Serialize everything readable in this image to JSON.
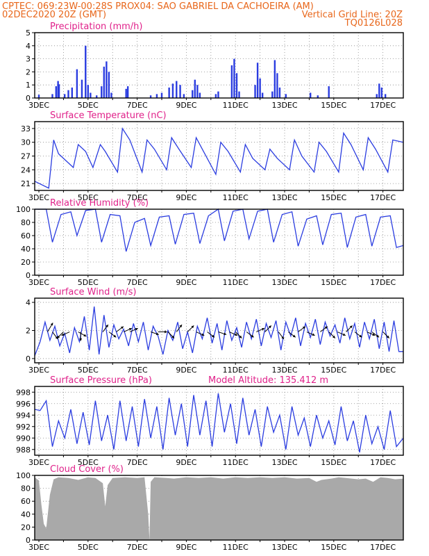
{
  "header": {
    "line1_left": "CPTEC:  069:23W-00:28S  PROX04: SAO GABRIEL DA CACHOEIRA (AM)",
    "line2_left": "02DEC2020 20Z (GMT)",
    "line2_right": "Vertical Grid Line: 20Z",
    "line3_right": "TQ0126L028"
  },
  "colors": {
    "header": "#e8661a",
    "title": "#e0218a",
    "series": "#2a3ce0",
    "cloud": "#a9a9a9",
    "grid": "#888888"
  },
  "x_axis": {
    "labels": [
      "3DEC",
      "5DEC",
      "7DEC",
      "9DEC",
      "11DEC",
      "13DEC",
      "15DEC",
      "17DEC"
    ],
    "range_days": [
      2.83,
      17.83
    ]
  },
  "chart_data": [
    {
      "type": "bar",
      "title": "Precipitation (mm/h)",
      "ylim": [
        0,
        5
      ],
      "yticks": [
        "0",
        "1",
        "2",
        "3",
        "4",
        "5"
      ],
      "bursts": [
        [
          3.0,
          0.25
        ],
        [
          3.55,
          0.3
        ],
        [
          3.7,
          0.9
        ],
        [
          3.78,
          1.3
        ],
        [
          3.82,
          1.05
        ],
        [
          4.05,
          0.3
        ],
        [
          4.2,
          0.6
        ],
        [
          4.35,
          0.8
        ],
        [
          4.55,
          2.2
        ],
        [
          4.75,
          1.4
        ],
        [
          4.9,
          4.0
        ],
        [
          5.0,
          1.0
        ],
        [
          5.1,
          0.4
        ],
        [
          5.35,
          0.2
        ],
        [
          5.55,
          0.9
        ],
        [
          5.65,
          2.4
        ],
        [
          5.75,
          2.8
        ],
        [
          5.85,
          2.0
        ],
        [
          5.95,
          0.4
        ],
        [
          6.55,
          0.7
        ],
        [
          6.62,
          0.9
        ],
        [
          7.55,
          0.2
        ],
        [
          7.8,
          0.3
        ],
        [
          8.0,
          0.4
        ],
        [
          8.3,
          0.8
        ],
        [
          8.45,
          1.1
        ],
        [
          8.6,
          1.3
        ],
        [
          8.75,
          1.0
        ],
        [
          8.9,
          0.3
        ],
        [
          9.25,
          0.6
        ],
        [
          9.35,
          1.4
        ],
        [
          9.45,
          1.0
        ],
        [
          9.55,
          0.4
        ],
        [
          10.2,
          0.3
        ],
        [
          10.3,
          0.5
        ],
        [
          10.85,
          2.5
        ],
        [
          10.95,
          3.0
        ],
        [
          11.05,
          1.9
        ],
        [
          11.15,
          0.5
        ],
        [
          11.8,
          1.0
        ],
        [
          11.9,
          2.7
        ],
        [
          12.0,
          1.5
        ],
        [
          12.1,
          0.4
        ],
        [
          12.5,
          0.5
        ],
        [
          12.6,
          2.9
        ],
        [
          12.7,
          1.9
        ],
        [
          12.8,
          0.8
        ],
        [
          13.05,
          0.3
        ],
        [
          14.05,
          0.4
        ],
        [
          14.35,
          0.2
        ],
        [
          14.8,
          0.9
        ],
        [
          16.75,
          0.3
        ],
        [
          16.85,
          1.1
        ],
        [
          16.95,
          0.8
        ],
        [
          17.1,
          0.3
        ]
      ]
    },
    {
      "type": "line",
      "title": "Surface Temperature (nC)",
      "ylim": [
        19.5,
        34.5
      ],
      "yticks": [
        "21",
        "24",
        "27",
        "30",
        "33"
      ],
      "x_days": [
        2.83,
        3.4,
        3.6,
        3.8,
        4.4,
        4.6,
        4.9,
        5.2,
        5.5,
        5.7,
        6.2,
        6.4,
        6.7,
        7.2,
        7.4,
        7.7,
        8.2,
        8.4,
        8.7,
        9.2,
        9.4,
        9.7,
        10.2,
        10.4,
        10.7,
        11.2,
        11.4,
        11.7,
        12.2,
        12.4,
        12.7,
        13.2,
        13.4,
        13.7,
        14.2,
        14.4,
        14.7,
        15.2,
        15.4,
        15.7,
        16.2,
        16.4,
        16.7,
        17.2,
        17.4,
        17.83
      ],
      "values": [
        21.5,
        20.0,
        30.5,
        27.5,
        24.5,
        29.5,
        28.0,
        24.5,
        29.5,
        28.0,
        23.5,
        33.0,
        30.5,
        23.5,
        30.5,
        28.5,
        24.0,
        31.0,
        28.5,
        24.5,
        31.0,
        28.0,
        23.0,
        30.0,
        28.0,
        23.5,
        29.5,
        26.5,
        24.0,
        28.5,
        26.5,
        24.0,
        30.5,
        27.0,
        23.5,
        30.0,
        28.0,
        23.5,
        32.0,
        29.5,
        24.0,
        31.0,
        28.5,
        23.5,
        30.5,
        30.0
      ]
    },
    {
      "type": "line",
      "title": "Relative Humidity (%)",
      "ylim": [
        0,
        100
      ],
      "yticks": [
        "0",
        "20",
        "40",
        "60",
        "80",
        "100"
      ],
      "x_days": [
        2.83,
        3.3,
        3.55,
        3.9,
        4.3,
        4.55,
        4.9,
        5.3,
        5.55,
        5.9,
        6.3,
        6.55,
        6.9,
        7.3,
        7.55,
        7.9,
        8.3,
        8.55,
        8.9,
        9.3,
        9.55,
        9.9,
        10.3,
        10.55,
        10.9,
        11.3,
        11.55,
        11.9,
        12.3,
        12.55,
        12.9,
        13.3,
        13.55,
        13.9,
        14.3,
        14.55,
        14.9,
        15.3,
        15.55,
        15.9,
        16.3,
        16.55,
        16.9,
        17.3,
        17.55,
        17.83
      ],
      "values": [
        100,
        100,
        50,
        92,
        96,
        60,
        98,
        100,
        50,
        92,
        90,
        36,
        80,
        86,
        45,
        88,
        90,
        47,
        92,
        94,
        48,
        90,
        100,
        52,
        97,
        100,
        55,
        97,
        100,
        50,
        92,
        96,
        44,
        85,
        90,
        46,
        92,
        94,
        42,
        88,
        92,
        44,
        88,
        90,
        42,
        45
      ]
    },
    {
      "type": "line",
      "title": "Surface Wind (m/s)",
      "ylim": [
        -0.3,
        4.3
      ],
      "yticks": [
        "0",
        "2",
        "4"
      ],
      "x_days": [
        2.83,
        3.05,
        3.25,
        3.45,
        3.65,
        3.85,
        4.05,
        4.25,
        4.45,
        4.65,
        4.85,
        5.05,
        5.25,
        5.45,
        5.65,
        5.85,
        6.05,
        6.25,
        6.45,
        6.65,
        6.85,
        7.05,
        7.25,
        7.45,
        7.65,
        7.85,
        8.05,
        8.25,
        8.45,
        8.65,
        8.85,
        9.05,
        9.25,
        9.45,
        9.65,
        9.85,
        10.05,
        10.25,
        10.45,
        10.65,
        10.85,
        11.05,
        11.25,
        11.45,
        11.65,
        11.85,
        12.05,
        12.25,
        12.45,
        12.65,
        12.85,
        13.05,
        13.25,
        13.45,
        13.65,
        13.85,
        14.05,
        14.25,
        14.45,
        14.65,
        14.85,
        15.05,
        15.25,
        15.45,
        15.65,
        15.85,
        16.05,
        16.25,
        16.45,
        16.65,
        16.85,
        17.05,
        17.25,
        17.45,
        17.65,
        17.83
      ],
      "values": [
        0.2,
        1.2,
        2.6,
        1.3,
        2.3,
        0.9,
        1.8,
        0.4,
        2.2,
        1.2,
        3.0,
        0.6,
        3.7,
        0.3,
        3.1,
        0.8,
        2.4,
        1.4,
        2.1,
        0.9,
        2.5,
        1.2,
        2.6,
        0.6,
        2.3,
        1.6,
        0.3,
        2.0,
        1.3,
        2.6,
        0.7,
        1.9,
        0.4,
        2.3,
        1.4,
        2.9,
        1.1,
        2.5,
        0.6,
        2.7,
        1.3,
        2.2,
        0.8,
        2.6,
        1.4,
        2.8,
        0.9,
        2.5,
        1.5,
        2.7,
        0.6,
        2.6,
        1.6,
        2.9,
        0.9,
        2.5,
        1.5,
        2.8,
        1.0,
        2.6,
        1.6,
        2.4,
        1.1,
        2.9,
        1.4,
        2.5,
        0.8,
        2.6,
        1.4,
        2.8,
        0.7,
        2.6,
        0.5,
        2.7,
        0.5,
        0.5
      ],
      "arrows": [
        {
          "day": 3.35,
          "dx": 0.6,
          "dy": 1.0
        },
        {
          "day": 3.55,
          "dx": 0.6,
          "dy": -0.8
        },
        {
          "day": 4.0,
          "dx": -0.7,
          "dy": -0.7
        },
        {
          "day": 4.25,
          "dx": -0.9,
          "dy": -0.4
        },
        {
          "day": 4.6,
          "dx": 0.9,
          "dy": -0.5
        },
        {
          "day": 4.7,
          "dx": 0.0,
          "dy": -1.0
        },
        {
          "day": 5.6,
          "dx": 0.6,
          "dy": 0.8
        },
        {
          "day": 5.85,
          "dx": 0.8,
          "dy": -0.6
        },
        {
          "day": 6.15,
          "dx": 0.8,
          "dy": 0.6
        },
        {
          "day": 6.45,
          "dx": 0.9,
          "dy": 0.4
        },
        {
          "day": 6.7,
          "dx": 0.9,
          "dy": 0.4
        },
        {
          "day": 7.55,
          "dx": 0.9,
          "dy": -0.3
        },
        {
          "day": 7.85,
          "dx": 1.0,
          "dy": 0.0
        },
        {
          "day": 8.25,
          "dx": 0.7,
          "dy": -0.7
        },
        {
          "day": 8.6,
          "dx": 0.6,
          "dy": 0.8
        },
        {
          "day": 9.05,
          "dx": 0.7,
          "dy": 0.7
        },
        {
          "day": 9.4,
          "dx": 0.9,
          "dy": -0.4
        },
        {
          "day": 9.85,
          "dx": 0.8,
          "dy": -0.6
        },
        {
          "day": 10.3,
          "dx": 0.9,
          "dy": -0.3
        },
        {
          "day": 10.75,
          "dx": 0.9,
          "dy": -0.4
        },
        {
          "day": 11.0,
          "dx": 0.7,
          "dy": -0.7
        },
        {
          "day": 11.45,
          "dx": 0.8,
          "dy": -0.6
        },
        {
          "day": 11.85,
          "dx": 0.9,
          "dy": 0.4
        },
        {
          "day": 12.2,
          "dx": 0.7,
          "dy": 0.7
        },
        {
          "day": 12.75,
          "dx": 0.6,
          "dy": -0.8
        },
        {
          "day": 13.15,
          "dx": 0.8,
          "dy": -0.6
        },
        {
          "day": 13.55,
          "dx": 0.8,
          "dy": 0.6
        },
        {
          "day": 13.9,
          "dx": 0.9,
          "dy": -0.4
        },
        {
          "day": 14.45,
          "dx": 0.8,
          "dy": 0.6
        },
        {
          "day": 14.8,
          "dx": 0.7,
          "dy": -0.7
        },
        {
          "day": 15.15,
          "dx": 0.9,
          "dy": -0.4
        },
        {
          "day": 15.5,
          "dx": 0.7,
          "dy": 0.7
        },
        {
          "day": 15.85,
          "dx": 0.8,
          "dy": -0.6
        },
        {
          "day": 16.35,
          "dx": 0.9,
          "dy": -0.4
        },
        {
          "day": 16.55,
          "dx": 0.8,
          "dy": -0.6
        },
        {
          "day": 17.0,
          "dx": 0.7,
          "dy": -0.7
        }
      ]
    },
    {
      "type": "line",
      "title": "Surface Pressure (hPa)",
      "annotation": "Model Altitude: 135.412 m",
      "ylim": [
        987,
        999
      ],
      "yticks": [
        "988",
        "990",
        "992",
        "994",
        "996",
        "998"
      ],
      "x_days": [
        2.83,
        3.05,
        3.3,
        3.55,
        3.8,
        4.05,
        4.3,
        4.55,
        4.8,
        5.05,
        5.3,
        5.55,
        5.8,
        6.05,
        6.3,
        6.55,
        6.8,
        7.05,
        7.3,
        7.55,
        7.8,
        8.05,
        8.3,
        8.55,
        8.8,
        9.05,
        9.3,
        9.55,
        9.8,
        10.05,
        10.3,
        10.55,
        10.8,
        11.05,
        11.3,
        11.55,
        11.8,
        12.05,
        12.3,
        12.55,
        12.8,
        13.05,
        13.3,
        13.55,
        13.8,
        14.05,
        14.3,
        14.55,
        14.8,
        15.05,
        15.3,
        15.55,
        15.8,
        16.05,
        16.3,
        16.55,
        16.8,
        17.05,
        17.3,
        17.55,
        17.83
      ],
      "values": [
        995.0,
        994.8,
        996.5,
        988.5,
        993.0,
        990.0,
        995.0,
        989.0,
        994.5,
        988.8,
        996.5,
        989.5,
        994.0,
        988.0,
        996.5,
        989.5,
        995.5,
        988.5,
        996.8,
        990.0,
        995.5,
        988.0,
        997.0,
        990.5,
        996.0,
        988.5,
        997.5,
        990.5,
        996.5,
        988.5,
        997.8,
        991.0,
        996.0,
        989.0,
        997.0,
        990.5,
        995.0,
        988.5,
        995.5,
        991.0,
        994.0,
        988.0,
        995.5,
        990.5,
        993.5,
        988.5,
        994.0,
        990.0,
        993.0,
        988.8,
        995.5,
        989.5,
        993.0,
        987.5,
        994.0,
        989.0,
        992.0,
        988.0,
        994.8,
        988.5,
        990.0
      ]
    },
    {
      "type": "area",
      "title": "Cloud Cover (%)",
      "ylim": [
        0,
        100
      ],
      "yticks": [
        "0",
        "20",
        "40",
        "60",
        "80",
        "100"
      ],
      "x_days": [
        2.83,
        3.0,
        3.1,
        3.2,
        3.3,
        3.45,
        3.6,
        3.8,
        4.2,
        4.6,
        4.8,
        5.0,
        5.3,
        5.6,
        5.7,
        5.8,
        6.0,
        6.5,
        7.0,
        7.3,
        7.45,
        7.5,
        7.55,
        7.7,
        8.2,
        8.5,
        9.0,
        9.5,
        10.0,
        10.5,
        11.0,
        11.5,
        12.0,
        12.5,
        13.0,
        13.5,
        14.0,
        14.3,
        14.5,
        14.9,
        15.2,
        15.5,
        16.0,
        16.3,
        16.6,
        16.9,
        17.2,
        17.5,
        17.83
      ],
      "values": [
        97,
        92,
        55,
        25,
        18,
        70,
        94,
        97,
        96,
        93,
        95,
        97,
        96,
        88,
        52,
        85,
        96,
        97,
        96,
        97,
        40,
        0,
        90,
        97,
        96,
        95,
        97,
        96,
        97,
        95,
        97,
        96,
        97,
        96,
        97,
        95,
        96,
        90,
        93,
        95,
        97,
        96,
        94,
        95,
        90,
        97,
        96,
        94,
        95
      ]
    }
  ]
}
